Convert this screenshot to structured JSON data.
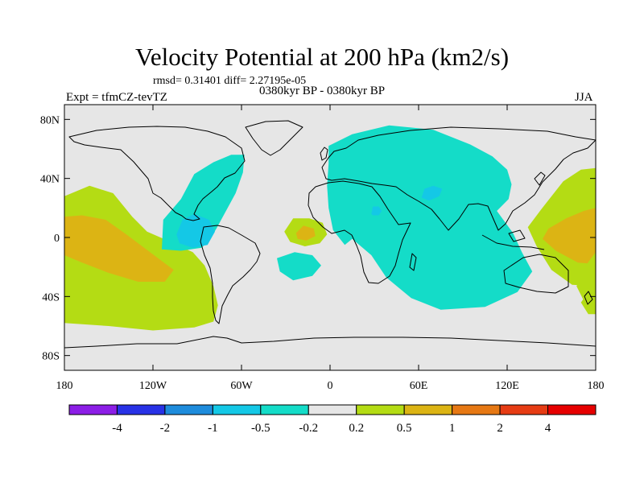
{
  "title": "Velocity Potential at 200 hPa (km2/s)",
  "stats": "rmsd= 0.31401 diff= 2.27195e-05",
  "left_label": "Expt = tfmCZ-tevTZ",
  "center_label": "0380kyr BP - 0380kyr BP",
  "right_label": "JJA",
  "chart_data": {
    "type": "heatmap",
    "title": "Velocity Potential at 200 hPa (km2/s)",
    "xlim": [
      -180,
      180
    ],
    "ylim": [
      -90,
      90
    ],
    "x_ticks": [
      {
        "value": -180,
        "label": "180"
      },
      {
        "value": -120,
        "label": "120W"
      },
      {
        "value": -60,
        "label": "60W"
      },
      {
        "value": 0,
        "label": "0"
      },
      {
        "value": 60,
        "label": "60E"
      },
      {
        "value": 120,
        "label": "120E"
      },
      {
        "value": 180,
        "label": "180"
      }
    ],
    "y_ticks": [
      {
        "value": 80,
        "label": "80N"
      },
      {
        "value": 40,
        "label": "40N"
      },
      {
        "value": 0,
        "label": "0"
      },
      {
        "value": -40,
        "label": "40S"
      },
      {
        "value": -80,
        "label": "80S"
      }
    ],
    "colorbar": {
      "bin_colors": [
        "#8c1ee6",
        "#2832e6",
        "#1e8cdc",
        "#14c8e6",
        "#14dcc8",
        "#e6e6e6",
        "#b4dc14",
        "#dcb414",
        "#e67814",
        "#e63c14",
        "#e60000"
      ],
      "labels": [
        {
          "boundary": 1,
          "text": "-4"
        },
        {
          "boundary": 2,
          "text": "-2"
        },
        {
          "boundary": 3,
          "text": "-1"
        },
        {
          "boundary": 4,
          "text": "-0.5"
        },
        {
          "boundary": 5,
          "text": "-0.2"
        },
        {
          "boundary": 6,
          "text": "0.2"
        },
        {
          "boundary": 7,
          "text": "0.5"
        },
        {
          "boundary": 8,
          "text": "1"
        },
        {
          "boundary": 9,
          "text": "2"
        },
        {
          "boundary": 10,
          "text": "4"
        }
      ]
    },
    "regions": [
      {
        "name": "east-pacific-positive",
        "level": "0.2 to 0.5",
        "color": "#b4dc14",
        "lonlat": [
          [
            -180,
            -58
          ],
          [
            -180,
            28
          ],
          [
            -163,
            35
          ],
          [
            -147,
            30
          ],
          [
            -134,
            14
          ],
          [
            -124,
            4
          ],
          [
            -108,
            -3
          ],
          [
            -93,
            -10
          ],
          [
            -85,
            -19
          ],
          [
            -79,
            -33
          ],
          [
            -76,
            -46
          ],
          [
            -79,
            -57
          ],
          [
            -92,
            -61
          ],
          [
            -120,
            -63
          ],
          [
            -150,
            -60
          ],
          [
            -180,
            -58
          ]
        ]
      },
      {
        "name": "east-pacific-core",
        "level": "0.5 to 1",
        "color": "#dcb414",
        "lonlat": [
          [
            -180,
            -12
          ],
          [
            -180,
            14
          ],
          [
            -168,
            15
          ],
          [
            -152,
            12
          ],
          [
            -138,
            2
          ],
          [
            -126,
            -7
          ],
          [
            -114,
            -16
          ],
          [
            -106,
            -22
          ],
          [
            -112,
            -30
          ],
          [
            -130,
            -30
          ],
          [
            -150,
            -24
          ],
          [
            -168,
            -17
          ],
          [
            -180,
            -12
          ]
        ]
      },
      {
        "name": "west-pacific-positive",
        "level": "0.2 to 0.5",
        "color": "#b4dc14",
        "lonlat": [
          [
            180,
            47
          ],
          [
            180,
            -33
          ],
          [
            164,
            -32
          ],
          [
            150,
            -22
          ],
          [
            140,
            -6
          ],
          [
            134,
            7
          ],
          [
            143,
            19
          ],
          [
            158,
            38
          ],
          [
            170,
            46
          ],
          [
            180,
            47
          ]
        ]
      },
      {
        "name": "west-pacific-core",
        "level": "0.5 to 1",
        "color": "#dcb414",
        "lonlat": [
          [
            180,
            20
          ],
          [
            180,
            -18
          ],
          [
            168,
            -17
          ],
          [
            153,
            -9
          ],
          [
            144,
            -1
          ],
          [
            148,
            6
          ],
          [
            160,
            13
          ],
          [
            172,
            18
          ],
          [
            180,
            20
          ]
        ]
      },
      {
        "name": "south-pacific-positive",
        "level": "0.2 to 0.5",
        "color": "#b4dc14",
        "lonlat": [
          [
            180,
            -36
          ],
          [
            180,
            -52
          ],
          [
            175,
            -52
          ],
          [
            170,
            -44
          ],
          [
            175,
            -37
          ],
          [
            180,
            -36
          ]
        ]
      },
      {
        "name": "gulf-of-guinea-positive",
        "level": "0.2 to 0.5",
        "color": "#b4dc14",
        "lonlat": [
          [
            -31,
            4
          ],
          [
            -25,
            13
          ],
          [
            -14,
            13
          ],
          [
            -5,
            10
          ],
          [
            -2,
            2
          ],
          [
            -7,
            -4
          ],
          [
            -17,
            -6
          ],
          [
            -27,
            -3
          ],
          [
            -31,
            4
          ]
        ]
      },
      {
        "name": "gulf-of-guinea-core",
        "level": "0.5 to 1",
        "color": "#dcb414",
        "lonlat": [
          [
            -23,
            3
          ],
          [
            -18,
            8
          ],
          [
            -11,
            6
          ],
          [
            -10,
            1
          ],
          [
            -16,
            -2
          ],
          [
            -22,
            -1
          ],
          [
            -23,
            3
          ]
        ]
      },
      {
        "name": "americas-negative",
        "level": "-0.5 to -0.2",
        "color": "#14dcc8",
        "lonlat": [
          [
            -114,
            -8
          ],
          [
            -113,
            12
          ],
          [
            -101,
            26
          ],
          [
            -92,
            43
          ],
          [
            -79,
            51
          ],
          [
            -67,
            56
          ],
          [
            -58,
            56
          ],
          [
            -59,
            44
          ],
          [
            -64,
            30
          ],
          [
            -71,
            17
          ],
          [
            -77,
            6
          ],
          [
            -82,
            -2
          ],
          [
            -87,
            -7
          ],
          [
            -101,
            -9
          ],
          [
            -114,
            -8
          ]
        ]
      },
      {
        "name": "central-america-core",
        "level": "-1 to -0.5",
        "color": "#14c8e6",
        "lonlat": [
          [
            -104,
            2
          ],
          [
            -100,
            12
          ],
          [
            -92,
            16
          ],
          [
            -82,
            12
          ],
          [
            -78,
            4
          ],
          [
            -83,
            -5
          ],
          [
            -93,
            -7
          ],
          [
            -102,
            -4
          ],
          [
            -104,
            2
          ]
        ]
      },
      {
        "name": "south-atlantic-negative",
        "level": "-0.5 to -0.2",
        "color": "#14dcc8",
        "lonlat": [
          [
            -36,
            -14
          ],
          [
            -34,
            -23
          ],
          [
            -25,
            -29
          ],
          [
            -12,
            -26
          ],
          [
            -6,
            -19
          ],
          [
            -12,
            -12
          ],
          [
            -24,
            -10
          ],
          [
            -36,
            -14
          ]
        ]
      },
      {
        "name": "eurasia-africa-negative",
        "level": "-0.5 to -0.2",
        "color": "#14dcc8",
        "lonlat": [
          [
            -1,
            62
          ],
          [
            15,
            70
          ],
          [
            40,
            76
          ],
          [
            70,
            73
          ],
          [
            95,
            63
          ],
          [
            110,
            55
          ],
          [
            120,
            46
          ],
          [
            123,
            36
          ],
          [
            121,
            26
          ],
          [
            113,
            18
          ],
          [
            124,
            3
          ],
          [
            130,
            -10
          ],
          [
            137,
            -23
          ],
          [
            127,
            -37
          ],
          [
            105,
            -47
          ],
          [
            75,
            -49
          ],
          [
            55,
            -41
          ],
          [
            38,
            -27
          ],
          [
            28,
            -12
          ],
          [
            15,
            -1
          ],
          [
            10,
            -5
          ],
          [
            2,
            5
          ],
          [
            -1,
            20
          ],
          [
            -2,
            35
          ],
          [
            -1,
            50
          ],
          [
            -1,
            62
          ]
        ]
      },
      {
        "name": "africa-core",
        "level": "-1 to -0.5",
        "color": "#14c8e6",
        "lonlat": [
          [
            28,
            16
          ],
          [
            29,
            21
          ],
          [
            33,
            21
          ],
          [
            35,
            18
          ],
          [
            33,
            15
          ],
          [
            29,
            15
          ],
          [
            28,
            16
          ]
        ]
      },
      {
        "name": "india-core",
        "level": "-1 to -0.5",
        "color": "#14c8e6",
        "lonlat": [
          [
            62,
            27
          ],
          [
            64,
            33
          ],
          [
            70,
            35
          ],
          [
            76,
            33
          ],
          [
            74,
            28
          ],
          [
            67,
            25
          ],
          [
            62,
            27
          ]
        ]
      },
      {
        "name": "south-indian-ocean-positive",
        "level": "0.2 to 0.5",
        "color": "#b4dc14",
        "lonlat": [
          [
            180,
            -10
          ],
          [
            180,
            -42
          ],
          [
            172,
            -43
          ],
          [
            167,
            -33
          ],
          [
            174,
            -18
          ],
          [
            180,
            -10
          ]
        ]
      }
    ]
  }
}
